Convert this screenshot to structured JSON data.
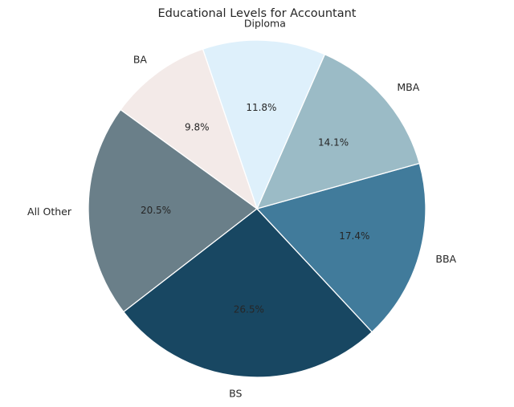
{
  "chart_data": {
    "type": "pie",
    "title": "Educational Levels for Accountant",
    "start_angle_deg": 144,
    "direction": "counterclockwise",
    "slices": [
      {
        "label": "All Other",
        "value": 20.5,
        "pct_label": "20.5%",
        "color": "#6a7f89"
      },
      {
        "label": "BS",
        "value": 26.5,
        "pct_label": "26.5%",
        "color": "#184762"
      },
      {
        "label": "BBA",
        "value": 17.4,
        "pct_label": "17.4%",
        "color": "#417b9b"
      },
      {
        "label": "MBA",
        "value": 14.1,
        "pct_label": "14.1%",
        "color": "#9bbbc6"
      },
      {
        "label": "Diploma",
        "value": 11.8,
        "pct_label": "11.8%",
        "color": "#def0fb"
      },
      {
        "label": "BA",
        "value": 9.8,
        "pct_label": "9.8%",
        "color": "#f3eae8"
      }
    ]
  }
}
